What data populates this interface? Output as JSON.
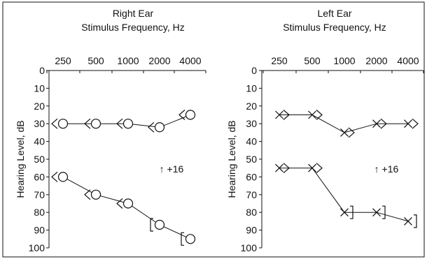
{
  "chart_data": [
    {
      "type": "line",
      "title": "Right Ear",
      "subtitle": "Stimulus Frequency, Hz",
      "ylabel": "Hearing Level, dB",
      "categories": [
        "250",
        "500",
        "1000",
        "2000",
        "4000"
      ],
      "yticks": [
        0,
        10,
        20,
        30,
        40,
        50,
        60,
        70,
        80,
        90,
        100
      ],
      "ylim": [
        0,
        100
      ],
      "y_inverted": true,
      "annotation": "↑ +16",
      "series": [
        {
          "markers": [
            "circle-left-angle",
            "circle-left-angle",
            "circle-left-angle",
            "circle-left-angle",
            "circle-left-angle"
          ],
          "values": [
            30,
            30,
            30,
            32,
            25
          ]
        },
        {
          "markers": [
            "circle-left-angle",
            "circle-left-angle",
            "circle-left-angle",
            "circle-left-bracket",
            "circle-left-bracket"
          ],
          "values": [
            60,
            70,
            75,
            87,
            95
          ]
        }
      ]
    },
    {
      "type": "line",
      "title": "Left Ear",
      "subtitle": "Stimulus Frequency, Hz",
      "ylabel": "Hearing Level, dB",
      "categories": [
        "250",
        "500",
        "1000",
        "2000",
        "4000"
      ],
      "yticks": [
        0,
        10,
        20,
        30,
        40,
        50,
        60,
        70,
        80,
        90,
        100
      ],
      "ylim": [
        0,
        100
      ],
      "y_inverted": true,
      "annotation": "↑ +16",
      "series": [
        {
          "markers": [
            "x-right-angle",
            "x-right-angle",
            "x-right-angle",
            "x-right-angle",
            "x-right-angle"
          ],
          "values": [
            25,
            25,
            35,
            30,
            30
          ]
        },
        {
          "markers": [
            "x-right-angle",
            "x-right-angle",
            "x-right-bracket",
            "x-right-bracket",
            "x-right-bracket"
          ],
          "values": [
            55,
            55,
            80,
            80,
            85
          ]
        }
      ]
    }
  ]
}
